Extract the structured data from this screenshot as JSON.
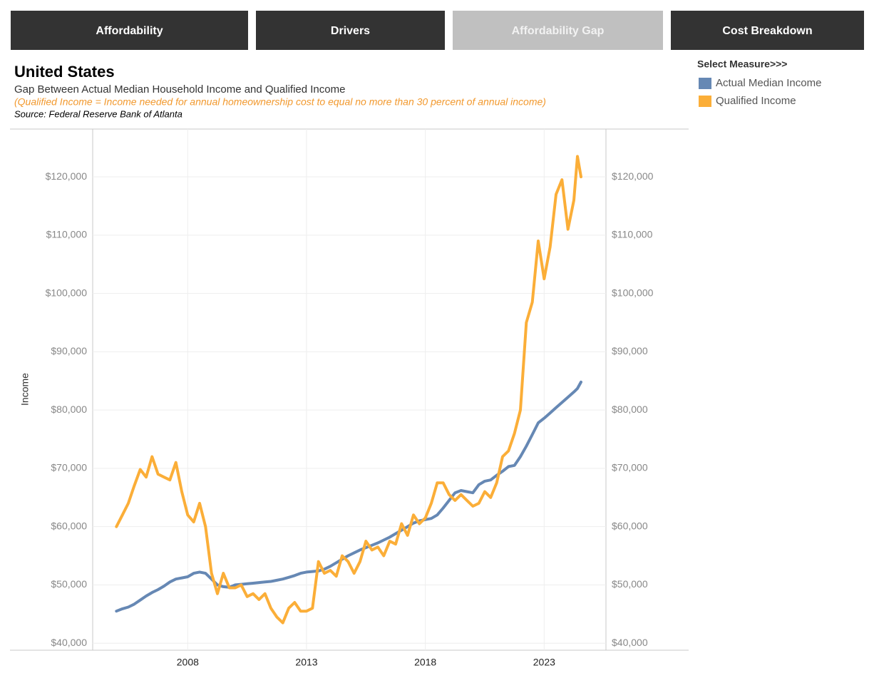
{
  "tabs": [
    "Affordability",
    "Drivers",
    "Affordability Gap",
    "Cost Breakdown"
  ],
  "active_tab": 2,
  "header": {
    "title": "United States",
    "subtitle": "Gap Between Actual Median Household Income and Qualified Income",
    "note": "(Qualified Income = Income needed for annual homeownership cost to equal no more than 30 percent of annual income)",
    "source": "Source: Federal Reserve Bank of Atlanta"
  },
  "legend": {
    "title": "Select Measure>>>"
  },
  "chart_data": {
    "type": "line",
    "y_label": "Income",
    "x": [
      2005,
      2005.25,
      2005.5,
      2005.75,
      2006,
      2006.25,
      2006.5,
      2006.75,
      2007,
      2007.25,
      2007.5,
      2007.75,
      2008,
      2008.25,
      2008.5,
      2008.75,
      2009,
      2009.25,
      2009.5,
      2009.75,
      2010,
      2010.25,
      2010.5,
      2010.75,
      2011,
      2011.25,
      2011.5,
      2011.75,
      2012,
      2012.25,
      2012.5,
      2012.75,
      2013,
      2013.25,
      2013.5,
      2013.75,
      2014,
      2014.25,
      2014.5,
      2014.75,
      2015,
      2015.25,
      2015.5,
      2015.75,
      2016,
      2016.25,
      2016.5,
      2016.75,
      2017,
      2017.25,
      2017.5,
      2017.75,
      2018,
      2018.25,
      2018.5,
      2018.75,
      2019,
      2019.25,
      2019.5,
      2019.75,
      2020,
      2020.25,
      2020.5,
      2020.75,
      2021,
      2021.25,
      2021.5,
      2021.75,
      2022,
      2022.25,
      2022.5,
      2022.75,
      2023,
      2023.25,
      2023.5,
      2023.75,
      2024,
      2024.25,
      2024.4,
      2024.55
    ],
    "series": [
      {
        "name": "Actual Median Income",
        "color": "#6688b4",
        "values": [
          45500,
          45900,
          46200,
          46700,
          47400,
          48100,
          48700,
          49200,
          49800,
          50500,
          51000,
          51200,
          51400,
          52000,
          52200,
          52000,
          51000,
          50000,
          49700,
          49600,
          50000,
          50100,
          50200,
          50300,
          50400,
          50500,
          50600,
          50800,
          51000,
          51300,
          51600,
          52000,
          52200,
          52300,
          52400,
          52700,
          53200,
          53800,
          54400,
          55000,
          55500,
          56000,
          56400,
          56800,
          57200,
          57700,
          58200,
          58800,
          59400,
          60000,
          60600,
          61000,
          61200,
          61400,
          62000,
          63200,
          64500,
          65800,
          66200,
          66000,
          65800,
          67200,
          67800,
          68000,
          68800,
          69500,
          70300,
          70500,
          72000,
          73800,
          75800,
          77800,
          78600,
          79500,
          80400,
          81300,
          82200,
          83100,
          83700,
          84800
        ]
      },
      {
        "name": "Qualified Income",
        "color": "#fbae38",
        "values": [
          60000,
          62000,
          64000,
          67000,
          69800,
          68500,
          72000,
          69000,
          68500,
          68000,
          71000,
          66000,
          62000,
          60800,
          64000,
          60000,
          52000,
          48500,
          52000,
          49500,
          49500,
          50000,
          48000,
          48500,
          47500,
          48500,
          46000,
          44500,
          43500,
          46000,
          47000,
          45500,
          45500,
          46000,
          54000,
          52000,
          52500,
          51500,
          55000,
          54000,
          52000,
          54000,
          57500,
          56000,
          56500,
          55000,
          57500,
          57000,
          60500,
          58500,
          62000,
          60500,
          61500,
          64000,
          67500,
          67500,
          65500,
          64500,
          65500,
          64500,
          63500,
          64000,
          66000,
          65000,
          67500,
          72000,
          73000,
          76000,
          80000,
          95000,
          98500,
          109000,
          102500,
          108000,
          117000,
          119500,
          111000,
          116000,
          123500,
          120000
        ]
      }
    ],
    "xlim": [
      2004,
      2025.6
    ],
    "xticks": [
      2008,
      2013,
      2018,
      2023
    ],
    "ylim": [
      38800,
      128200
    ],
    "yticks": [
      {
        "value": 40000,
        "label": "$40,000"
      },
      {
        "value": 50000,
        "label": "$50,000"
      },
      {
        "value": 60000,
        "label": "$60,000"
      },
      {
        "value": 70000,
        "label": "$70,000"
      },
      {
        "value": 80000,
        "label": "$80,000"
      },
      {
        "value": 90000,
        "label": "$90,000"
      },
      {
        "value": 100000,
        "label": "$100,000"
      },
      {
        "value": 110000,
        "label": "$110,000"
      },
      {
        "value": 120000,
        "label": "$120,000"
      }
    ],
    "grid": true
  }
}
